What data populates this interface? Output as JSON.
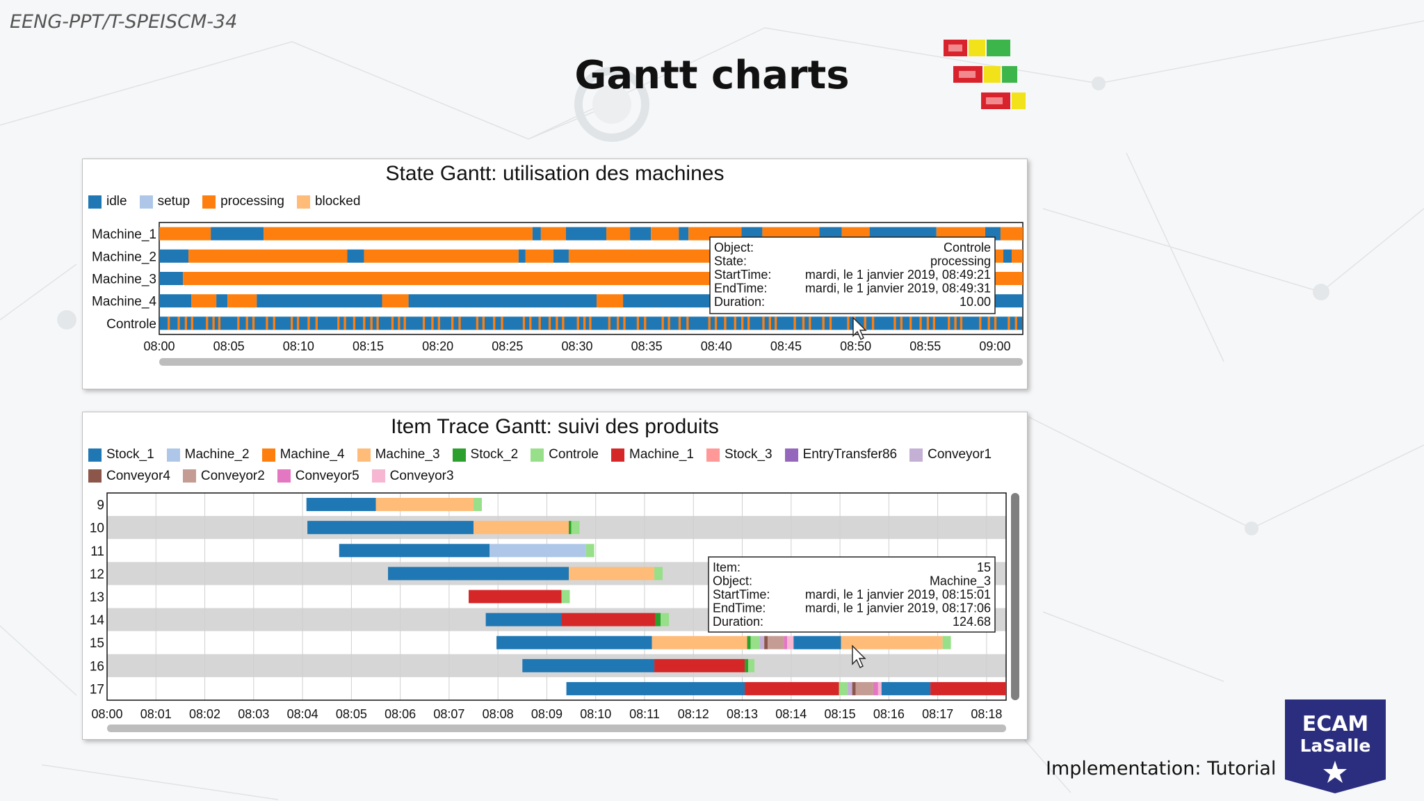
{
  "slide": {
    "course_code": "EENG-PPT/T-SPEISCM-34",
    "title": "Gantt charts",
    "footer": "Implementation: Tutorial",
    "logo_line1": "ECAM",
    "logo_line2": "LaSalle"
  },
  "state_gantt": {
    "title": "State Gantt: utilisation des machines",
    "legend": [
      {
        "label": "idle",
        "color": "#1f77b4"
      },
      {
        "label": "setup",
        "color": "#aec7e8"
      },
      {
        "label": "processing",
        "color": "#ff7f0e"
      },
      {
        "label": "blocked",
        "color": "#ffbb78"
      }
    ],
    "rows": [
      "Machine_1",
      "Machine_2",
      "Machine_3",
      "Machine_4",
      "Controle"
    ],
    "x_ticks": [
      "08:00",
      "08:05",
      "08:10",
      "08:15",
      "08:20",
      "08:25",
      "08:30",
      "08:35",
      "08:40",
      "08:45",
      "08:50",
      "08:55",
      "09:00"
    ],
    "tooltip": {
      "rows": [
        {
          "key": "Object:",
          "value": "Controle"
        },
        {
          "key": "State:",
          "value": "processing"
        },
        {
          "key": "StartTime:",
          "value": "mardi, le   1 janvier 2019, 08:49:21"
        },
        {
          "key": "EndTime:",
          "value": "mardi, le   1 janvier 2019, 08:49:31"
        },
        {
          "key": "Duration:",
          "value": "10.00"
        }
      ]
    }
  },
  "item_gantt": {
    "title": "Item Trace Gantt: suivi des produits",
    "legend": [
      {
        "label": "Stock_1",
        "color": "#1f77b4"
      },
      {
        "label": "Machine_2",
        "color": "#aec7e8"
      },
      {
        "label": "Machine_4",
        "color": "#ff7f0e"
      },
      {
        "label": "Machine_3",
        "color": "#ffbb78"
      },
      {
        "label": "Stock_2",
        "color": "#2ca02c"
      },
      {
        "label": "Controle",
        "color": "#98df8a"
      },
      {
        "label": "Machine_1",
        "color": "#d62728"
      },
      {
        "label": "Stock_3",
        "color": "#ff9896"
      },
      {
        "label": "EntryTransfer86",
        "color": "#9467bd"
      },
      {
        "label": "Conveyor1",
        "color": "#c5b0d5"
      },
      {
        "label": "Conveyor4",
        "color": "#8c564b"
      },
      {
        "label": "Conveyor2",
        "color": "#c49c94"
      },
      {
        "label": "Conveyor5",
        "color": "#e377c2"
      },
      {
        "label": "Conveyor3",
        "color": "#f7b6d2"
      }
    ],
    "rows": [
      "9",
      "10",
      "11",
      "12",
      "13",
      "14",
      "15",
      "16",
      "17"
    ],
    "x_ticks": [
      "08:00",
      "08:01",
      "08:02",
      "08:03",
      "08:04",
      "08:05",
      "08:06",
      "08:07",
      "08:08",
      "08:09",
      "08:10",
      "08:11",
      "08:12",
      "08:13",
      "08:14",
      "08:15",
      "08:16",
      "08:17",
      "08:18"
    ],
    "tooltip": {
      "rows": [
        {
          "key": "Item:",
          "value": "15"
        },
        {
          "key": "Object:",
          "value": "Machine_3"
        },
        {
          "key": "StartTime:",
          "value": "mardi, le   1 janvier 2019, 08:15:01"
        },
        {
          "key": "EndTime:",
          "value": "mardi, le   1 janvier 2019, 08:17:06"
        },
        {
          "key": "Duration:",
          "value": "124.68"
        }
      ]
    }
  },
  "chart_data": [
    {
      "type": "gantt",
      "title": "State Gantt: utilisation des machines",
      "x_unit": "minutes after 08:00",
      "xlim": [
        0,
        62
      ],
      "categories": [
        "Machine_1",
        "Machine_2",
        "Machine_3",
        "Machine_4",
        "Controle"
      ],
      "series": [
        {
          "row": "Machine_1",
          "segments": [
            {
              "state": "processing",
              "start": 0,
              "end": 3.7
            },
            {
              "state": "idle",
              "start": 3.7,
              "end": 7.5
            },
            {
              "state": "processing",
              "start": 7.5,
              "end": 26.8
            },
            {
              "state": "idle",
              "start": 26.8,
              "end": 27.4
            },
            {
              "state": "processing",
              "start": 27.4,
              "end": 29.2
            },
            {
              "state": "idle",
              "start": 29.2,
              "end": 32.1
            },
            {
              "state": "processing",
              "start": 32.1,
              "end": 33.8
            },
            {
              "state": "idle",
              "start": 33.8,
              "end": 35.3
            },
            {
              "state": "processing",
              "start": 35.3,
              "end": 37.3
            },
            {
              "state": "idle",
              "start": 37.3,
              "end": 38.0
            },
            {
              "state": "processing",
              "start": 38.0,
              "end": 41.8
            },
            {
              "state": "idle",
              "start": 41.8,
              "end": 43.3
            },
            {
              "state": "processing",
              "start": 43.3,
              "end": 47.4
            },
            {
              "state": "idle",
              "start": 47.4,
              "end": 49.0
            },
            {
              "state": "processing",
              "start": 49.0,
              "end": 51.0
            },
            {
              "state": "idle",
              "start": 51.0,
              "end": 55.8
            },
            {
              "state": "processing",
              "start": 55.8,
              "end": 59.3
            },
            {
              "state": "idle",
              "start": 59.3,
              "end": 60.4
            },
            {
              "state": "processing",
              "start": 60.4,
              "end": 62
            }
          ]
        },
        {
          "row": "Machine_2",
          "segments": [
            {
              "state": "idle",
              "start": 0,
              "end": 2.1
            },
            {
              "state": "processing",
              "start": 2.1,
              "end": 13.5
            },
            {
              "state": "idle",
              "start": 13.5,
              "end": 14.7
            },
            {
              "state": "processing",
              "start": 14.7,
              "end": 25.8
            },
            {
              "state": "idle",
              "start": 25.8,
              "end": 26.3
            },
            {
              "state": "processing",
              "start": 26.3,
              "end": 28.3
            },
            {
              "state": "idle",
              "start": 28.3,
              "end": 29.4
            },
            {
              "state": "processing",
              "start": 29.4,
              "end": 60.6
            },
            {
              "state": "idle",
              "start": 60.6,
              "end": 61.2
            },
            {
              "state": "processing",
              "start": 61.2,
              "end": 62
            }
          ]
        },
        {
          "row": "Machine_3",
          "segments": [
            {
              "state": "idle",
              "start": 0,
              "end": 1.7
            },
            {
              "state": "processing",
              "start": 1.7,
              "end": 62
            }
          ]
        },
        {
          "row": "Machine_4",
          "segments": [
            {
              "state": "idle",
              "start": 0,
              "end": 2.3
            },
            {
              "state": "processing",
              "start": 2.3,
              "end": 4.1
            },
            {
              "state": "idle",
              "start": 4.1,
              "end": 4.9
            },
            {
              "state": "processing",
              "start": 4.9,
              "end": 7.0
            },
            {
              "state": "idle",
              "start": 7.0,
              "end": 16.0
            },
            {
              "state": "processing",
              "start": 16.0,
              "end": 17.9
            },
            {
              "state": "idle",
              "start": 17.9,
              "end": 31.4
            },
            {
              "state": "processing",
              "start": 31.4,
              "end": 33.3
            },
            {
              "state": "idle",
              "start": 33.3,
              "end": 62
            }
          ]
        },
        {
          "row": "Controle",
          "pattern": "idle with frequent short processing bursts (~10 s each)"
        }
      ]
    },
    {
      "type": "gantt",
      "title": "Item Trace Gantt: suivi des produits",
      "x_unit": "minutes after 08:00",
      "xlim": [
        0,
        18.4
      ],
      "categories": [
        "9",
        "10",
        "11",
        "12",
        "13",
        "14",
        "15",
        "16",
        "17"
      ],
      "series": [
        {
          "row": "9",
          "segments": [
            {
              "object": "Stock_1",
              "start": 4.08,
              "end": 5.5
            },
            {
              "object": "Machine_3",
              "start": 5.5,
              "end": 7.5
            },
            {
              "object": "Controle",
              "start": 7.5,
              "end": 7.67
            }
          ]
        },
        {
          "row": "10",
          "segments": [
            {
              "object": "Stock_1",
              "start": 4.1,
              "end": 7.5
            },
            {
              "object": "Machine_3",
              "start": 7.5,
              "end": 9.45
            },
            {
              "object": "Stock_2",
              "start": 9.45,
              "end": 9.5
            },
            {
              "object": "Controle",
              "start": 9.5,
              "end": 9.67
            }
          ]
        },
        {
          "row": "11",
          "segments": [
            {
              "object": "Stock_1",
              "start": 4.75,
              "end": 7.83
            },
            {
              "object": "Machine_2",
              "start": 7.83,
              "end": 9.8
            },
            {
              "object": "Controle",
              "start": 9.8,
              "end": 9.97
            }
          ]
        },
        {
          "row": "12",
          "segments": [
            {
              "object": "Stock_1",
              "start": 5.75,
              "end": 9.45
            },
            {
              "object": "Machine_3",
              "start": 9.45,
              "end": 11.2
            },
            {
              "object": "Controle",
              "start": 11.2,
              "end": 11.37
            }
          ]
        },
        {
          "row": "13",
          "segments": [
            {
              "object": "Machine_1",
              "start": 7.4,
              "end": 9.3
            },
            {
              "object": "Controle",
              "start": 9.3,
              "end": 9.47
            }
          ]
        },
        {
          "row": "14",
          "segments": [
            {
              "object": "Stock_1",
              "start": 7.75,
              "end": 9.3
            },
            {
              "object": "Machine_1",
              "start": 9.3,
              "end": 11.22
            },
            {
              "object": "Stock_2",
              "start": 11.22,
              "end": 11.33
            },
            {
              "object": "Controle",
              "start": 11.33,
              "end": 11.5
            }
          ]
        },
        {
          "row": "15",
          "segments": [
            {
              "object": "Stock_1",
              "start": 7.97,
              "end": 11.15
            },
            {
              "object": "Machine_3",
              "start": 11.15,
              "end": 13.1
            },
            {
              "object": "Stock_2",
              "start": 13.1,
              "end": 13.17
            },
            {
              "object": "Controle",
              "start": 13.17,
              "end": 13.35
            },
            {
              "object": "Conveyor1",
              "start": 13.35,
              "end": 13.45
            },
            {
              "object": "Conveyor4",
              "start": 13.45,
              "end": 13.52
            },
            {
              "object": "Conveyor2",
              "start": 13.52,
              "end": 13.85
            },
            {
              "object": "Conveyor5",
              "start": 13.85,
              "end": 13.92
            },
            {
              "object": "Conveyor3",
              "start": 13.92,
              "end": 14.05
            },
            {
              "object": "Stock_1",
              "start": 14.05,
              "end": 15.02
            },
            {
              "object": "Machine_3",
              "start": 15.02,
              "end": 17.1
            },
            {
              "object": "Controle",
              "start": 17.1,
              "end": 17.27
            }
          ]
        },
        {
          "row": "16",
          "segments": [
            {
              "object": "Stock_1",
              "start": 8.5,
              "end": 11.2
            },
            {
              "object": "Machine_1",
              "start": 11.2,
              "end": 13.05
            },
            {
              "object": "Stock_2",
              "start": 13.05,
              "end": 13.12
            },
            {
              "object": "Controle",
              "start": 13.12,
              "end": 13.25
            }
          ]
        },
        {
          "row": "17",
          "segments": [
            {
              "object": "Stock_1",
              "start": 9.4,
              "end": 13.05
            },
            {
              "object": "Machine_1",
              "start": 13.05,
              "end": 14.98
            },
            {
              "object": "Controle",
              "start": 14.98,
              "end": 15.15
            },
            {
              "object": "Conveyor1",
              "start": 15.15,
              "end": 15.25
            },
            {
              "object": "Conveyor4",
              "start": 15.25,
              "end": 15.32
            },
            {
              "object": "Conveyor2",
              "start": 15.32,
              "end": 15.68
            },
            {
              "object": "Conveyor5",
              "start": 15.68,
              "end": 15.78
            },
            {
              "object": "Conveyor3",
              "start": 15.78,
              "end": 15.85
            },
            {
              "object": "Stock_1",
              "start": 15.85,
              "end": 16.85
            },
            {
              "object": "Machine_1",
              "start": 16.85,
              "end": 18.4
            }
          ]
        }
      ]
    }
  ]
}
